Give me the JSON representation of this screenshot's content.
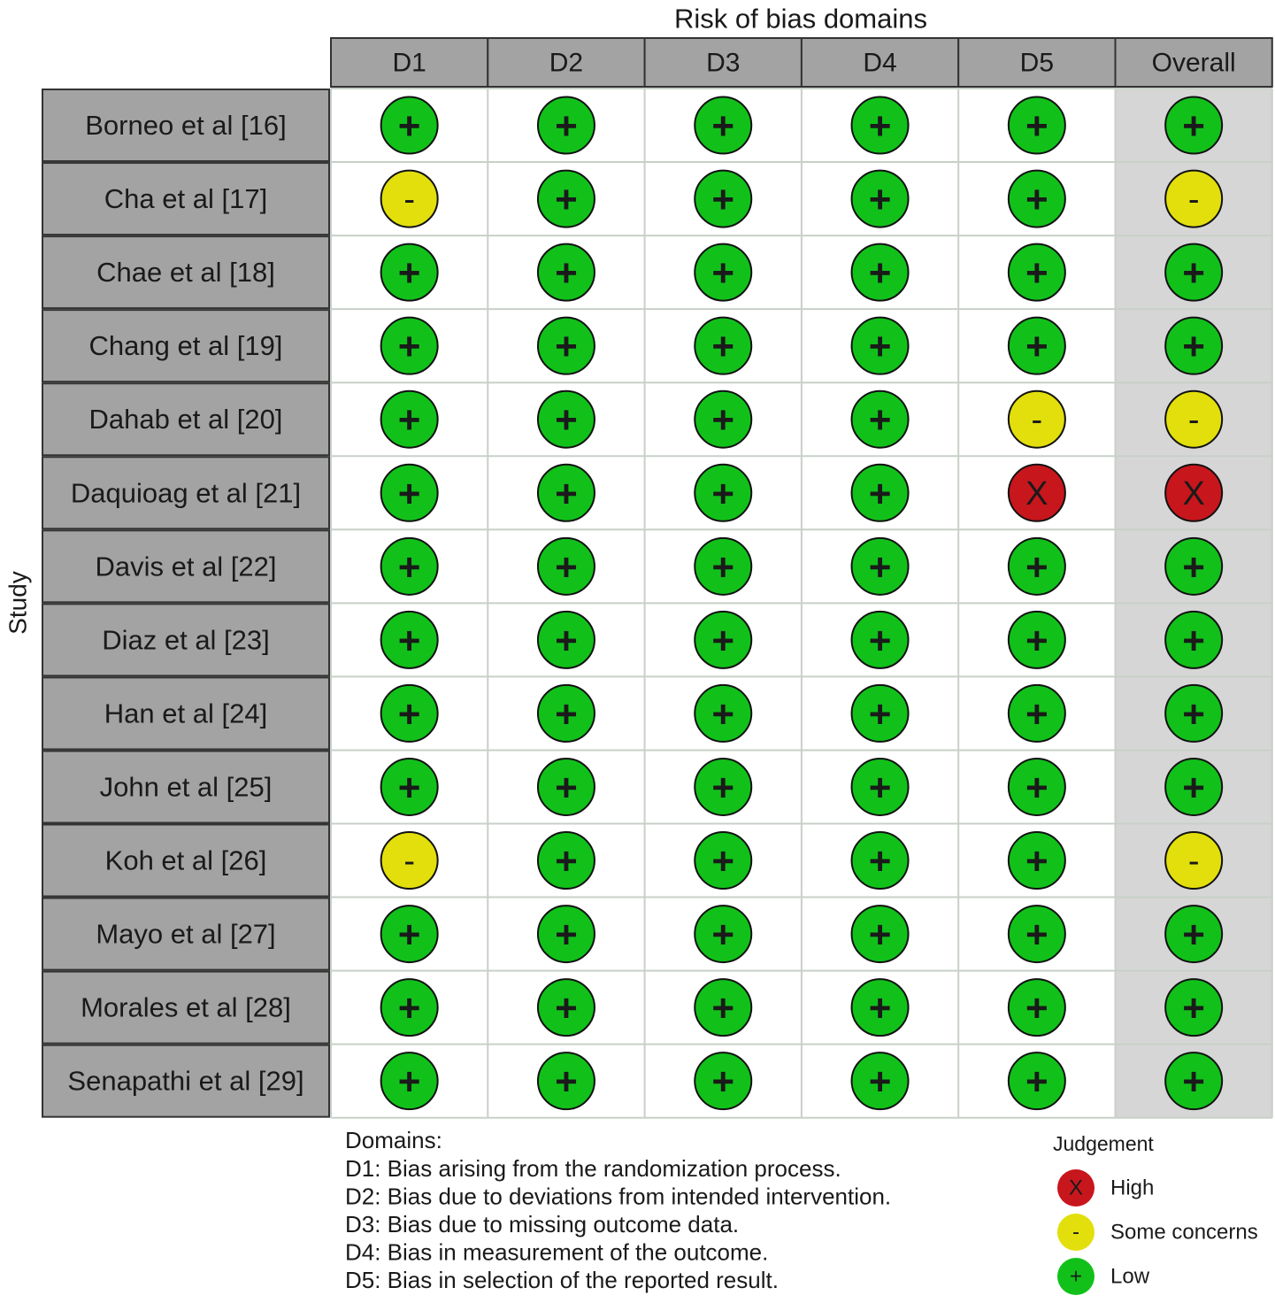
{
  "title": "Risk of bias domains",
  "y_label": "Study",
  "columns": [
    "D1",
    "D2",
    "D3",
    "D4",
    "D5",
    "Overall"
  ],
  "rows": [
    {
      "study": "Borneo et al [16]",
      "judgements": [
        "+",
        "+",
        "+",
        "+",
        "+",
        "+"
      ]
    },
    {
      "study": "Cha et al [17]",
      "judgements": [
        "-",
        "+",
        "+",
        "+",
        "+",
        "-"
      ]
    },
    {
      "study": "Chae et al [18]",
      "judgements": [
        "+",
        "+",
        "+",
        "+",
        "+",
        "+"
      ]
    },
    {
      "study": "Chang et al [19]",
      "judgements": [
        "+",
        "+",
        "+",
        "+",
        "+",
        "+"
      ]
    },
    {
      "study": "Dahab et al [20]",
      "judgements": [
        "+",
        "+",
        "+",
        "+",
        "-",
        "-"
      ]
    },
    {
      "study": "Daquioag et al [21]",
      "judgements": [
        "+",
        "+",
        "+",
        "+",
        "X",
        "X"
      ]
    },
    {
      "study": "Davis et al [22]",
      "judgements": [
        "+",
        "+",
        "+",
        "+",
        "+",
        "+"
      ]
    },
    {
      "study": "Diaz et al [23]",
      "judgements": [
        "+",
        "+",
        "+",
        "+",
        "+",
        "+"
      ]
    },
    {
      "study": "Han et al [24]",
      "judgements": [
        "+",
        "+",
        "+",
        "+",
        "+",
        "+"
      ]
    },
    {
      "study": "John et al [25]",
      "judgements": [
        "+",
        "+",
        "+",
        "+",
        "+",
        "+"
      ]
    },
    {
      "study": "Koh et al [26]",
      "judgements": [
        "-",
        "+",
        "+",
        "+",
        "+",
        "-"
      ]
    },
    {
      "study": "Mayo et al [27]",
      "judgements": [
        "+",
        "+",
        "+",
        "+",
        "+",
        "+"
      ]
    },
    {
      "study": "Morales et al [28]",
      "judgements": [
        "+",
        "+",
        "+",
        "+",
        "+",
        "+"
      ]
    },
    {
      "study": "Senapathi et al [29]",
      "judgements": [
        "+",
        "+",
        "+",
        "+",
        "+",
        "+"
      ]
    }
  ],
  "domains": {
    "title": "Domains:",
    "items": [
      "D1: Bias arising from the randomization process.",
      "D2: Bias due to deviations from intended intervention.",
      "D3: Bias due to missing outcome data.",
      "D4: Bias in measurement of the outcome.",
      "D5: Bias in selection of the reported result."
    ]
  },
  "legend": {
    "title": "Judgement",
    "items": [
      {
        "symbol": "X",
        "label": "High",
        "color": "#c8161d"
      },
      {
        "symbol": "-",
        "label": "Some concerns",
        "color": "#e2df0c"
      },
      {
        "symbol": "+",
        "label": "Low",
        "color": "#11c11a"
      }
    ]
  }
}
